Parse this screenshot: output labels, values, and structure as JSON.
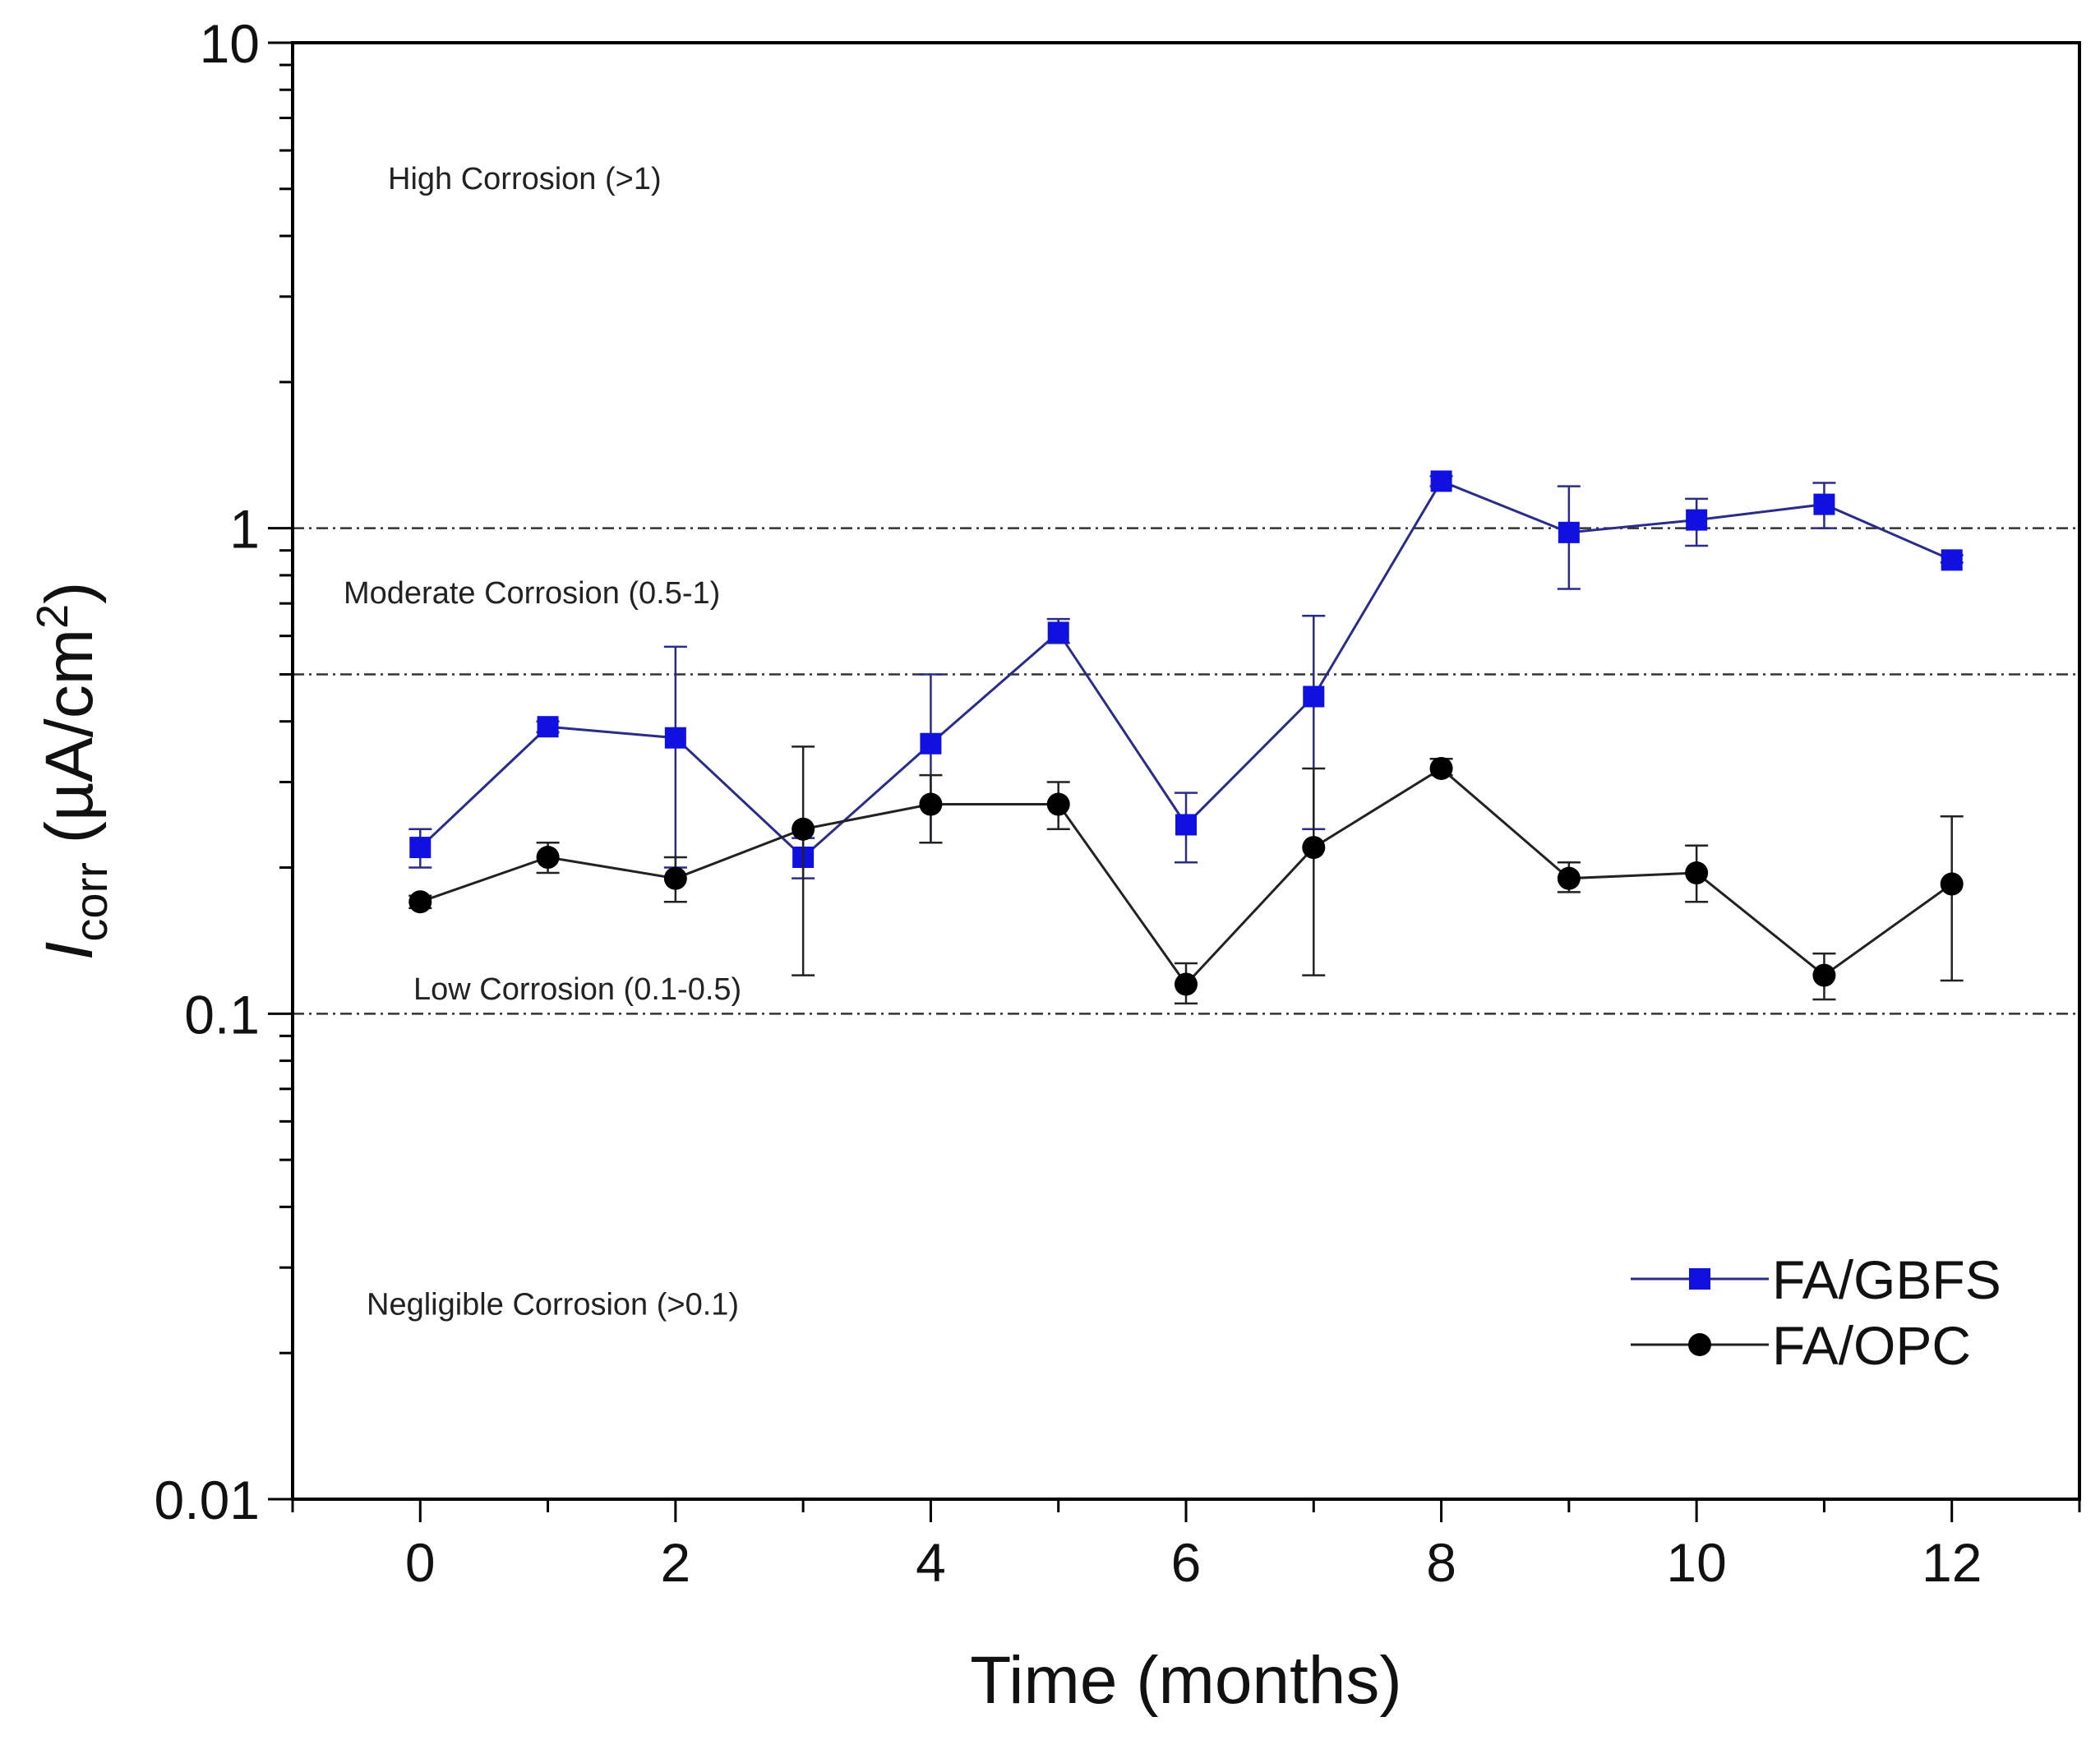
{
  "chart_data": {
    "type": "line",
    "title": "",
    "xlabel": "Time (months)",
    "ylabel": {
      "symbol": "I",
      "subscript": "corr",
      "units": " (µA/cm",
      "superscript": "2",
      "close": ")"
    },
    "xlim": [
      -1,
      13
    ],
    "ylim": [
      0.01,
      10
    ],
    "yscale": "log",
    "x_ticks": [
      {
        "value": 0,
        "label": "0"
      },
      {
        "value": 2,
        "label": "2"
      },
      {
        "value": 4,
        "label": "4"
      },
      {
        "value": 6,
        "label": "6"
      },
      {
        "value": 8,
        "label": "8"
      },
      {
        "value": 10,
        "label": "10"
      },
      {
        "value": 12,
        "label": "12"
      }
    ],
    "y_ticks": [
      {
        "value": 0.01,
        "label": "0.01"
      },
      {
        "value": 0.1,
        "label": "0.1"
      },
      {
        "value": 1,
        "label": "1"
      },
      {
        "value": 10,
        "label": "10"
      }
    ],
    "thresholds": [
      0.1,
      0.5,
      1
    ],
    "zones": [
      {
        "text": "High Corrosion (>1)",
        "x": 1,
        "y": 5.0
      },
      {
        "text": "Moderate Corrosion (0.5-1)",
        "x": 1,
        "y": 0.7
      },
      {
        "text": "Low Corrosion (0.1-0.5)",
        "x": 1,
        "y": 0.107
      },
      {
        "text": "Negligible Corrosion (>0.1)",
        "x": 1.2,
        "y": 0.024
      }
    ],
    "legend_position": "bottom-right",
    "series": [
      {
        "name": "FA/GBFS",
        "color": "#1010e0",
        "line_color": "#2b2b8a",
        "marker": "square",
        "x": [
          0,
          1,
          2,
          3,
          4,
          5,
          6,
          7,
          8,
          9,
          10,
          11,
          12
        ],
        "y": [
          0.22,
          0.39,
          0.37,
          0.21,
          0.36,
          0.61,
          0.245,
          0.45,
          1.25,
          0.98,
          1.04,
          1.12,
          0.86
        ],
        "err_low": [
          0.2,
          0.38,
          0.2,
          0.19,
          0.225,
          0.58,
          0.205,
          0.24,
          1.22,
          0.75,
          0.92,
          1.0,
          0.85
        ],
        "err_high": [
          0.24,
          0.4,
          0.57,
          0.23,
          0.5,
          0.65,
          0.285,
          0.66,
          1.28,
          1.22,
          1.15,
          1.24,
          0.88
        ]
      },
      {
        "name": "FA/OPC",
        "color": "#000000",
        "line_color": "#222222",
        "marker": "circle",
        "x": [
          0,
          1,
          2,
          3,
          4,
          5,
          6,
          7,
          8,
          9,
          10,
          11,
          12
        ],
        "y": [
          0.17,
          0.21,
          0.19,
          0.24,
          0.27,
          0.27,
          0.115,
          0.22,
          0.32,
          0.19,
          0.195,
          0.12,
          0.185
        ],
        "err_low": [
          0.165,
          0.195,
          0.17,
          0.12,
          0.225,
          0.24,
          0.105,
          0.12,
          0.31,
          0.178,
          0.17,
          0.107,
          0.117
        ],
        "err_high": [
          0.175,
          0.225,
          0.21,
          0.355,
          0.31,
          0.3,
          0.127,
          0.32,
          0.335,
          0.205,
          0.222,
          0.133,
          0.255
        ]
      }
    ]
  }
}
